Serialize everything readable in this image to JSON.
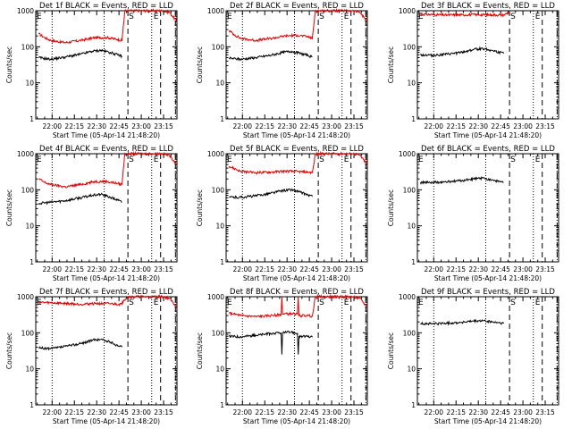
{
  "figure": {
    "ylabel": "Counts/sec",
    "xlabel": "Start Time (05-Apr-14 21:48:20)",
    "colors": {
      "events": "#000000",
      "lld": "#e00000",
      "axes": "#000000"
    },
    "markers": [
      "S",
      "E"
    ]
  },
  "chart_data": [
    {
      "title": "Det 1f BLACK = Events, RED = LLD",
      "type": "line",
      "x_ticks": [
        "22:00",
        "22:15",
        "22:30",
        "22:45",
        "23:00",
        "23:15"
      ],
      "y_ticks": [
        "1",
        "10",
        "100",
        "1000"
      ],
      "ylim": [
        1,
        1000
      ],
      "xlim_minutes": [
        0,
        95
      ],
      "dotted_lines": [
        11,
        46,
        78
      ],
      "dashed_lines": [
        62,
        84
      ],
      "dashdot_line": 94,
      "events": {
        "x_min": [
          2,
          10,
          20,
          30,
          38,
          44,
          50,
          55,
          58
        ],
        "y": [
          50,
          45,
          52,
          62,
          75,
          80,
          70,
          60,
          55
        ]
      },
      "lld": {
        "x_min": [
          2,
          6,
          10,
          20,
          30,
          40,
          48,
          55,
          58,
          59,
          60,
          85,
          90,
          95
        ],
        "y": [
          230,
          180,
          150,
          130,
          150,
          180,
          180,
          160,
          150,
          400,
          1000,
          1000,
          900,
          500
        ]
      }
    },
    {
      "title": "Det 2f BLACK = Events, RED = LLD",
      "type": "line",
      "x_ticks": [
        "22:00",
        "22:15",
        "22:30",
        "22:45",
        "23:00",
        "23:15"
      ],
      "y_ticks": [
        "1",
        "10",
        "100",
        "1000"
      ],
      "ylim": [
        1,
        1000
      ],
      "xlim_minutes": [
        0,
        95
      ],
      "dotted_lines": [
        11,
        46,
        78
      ],
      "dashed_lines": [
        62,
        84
      ],
      "dashdot_line": 94,
      "events": {
        "x_min": [
          2,
          10,
          20,
          30,
          38,
          44,
          50,
          55,
          58
        ],
        "y": [
          48,
          45,
          50,
          58,
          70,
          75,
          65,
          58,
          52
        ]
      },
      "lld": {
        "x_min": [
          2,
          6,
          10,
          20,
          30,
          40,
          48,
          55,
          58,
          59,
          60,
          85,
          90,
          95
        ],
        "y": [
          280,
          210,
          170,
          150,
          170,
          200,
          210,
          190,
          170,
          400,
          1000,
          1000,
          900,
          500
        ]
      }
    },
    {
      "title": "Det 3f BLACK = Events, RED = LLD",
      "type": "line",
      "x_ticks": [
        "22:00",
        "22:15",
        "22:30",
        "22:45",
        "23:00",
        "23:15"
      ],
      "y_ticks": [
        "1",
        "10",
        "100",
        "1000"
      ],
      "ylim": [
        1,
        1000
      ],
      "xlim_minutes": [
        0,
        95
      ],
      "dotted_lines": [
        11,
        46,
        78
      ],
      "dashed_lines": [
        62,
        84
      ],
      "dashdot_line": 94,
      "events": {
        "x_min": [
          2,
          10,
          20,
          30,
          38,
          44,
          50,
          55,
          58
        ],
        "y": [
          60,
          58,
          62,
          70,
          85,
          90,
          80,
          70,
          65
        ]
      },
      "lld": {
        "x_min": [
          2,
          10,
          20,
          30,
          40,
          50,
          58,
          59,
          62
        ],
        "y": [
          800,
          780,
          760,
          770,
          780,
          770,
          760,
          800,
          900
        ]
      }
    },
    {
      "title": "Det 4f BLACK = Events, RED = LLD",
      "type": "line",
      "x_ticks": [
        "22:00",
        "22:15",
        "22:30",
        "22:45",
        "23:00",
        "23:15"
      ],
      "y_ticks": [
        "1",
        "10",
        "100",
        "1000"
      ],
      "ylim": [
        1,
        1000
      ],
      "xlim_minutes": [
        0,
        95
      ],
      "dotted_lines": [
        11,
        46,
        78
      ],
      "dashed_lines": [
        62,
        84
      ],
      "dashdot_line": 94,
      "events": {
        "x_min": [
          2,
          10,
          20,
          30,
          38,
          44,
          50,
          55,
          58
        ],
        "y": [
          42,
          45,
          50,
          60,
          70,
          75,
          62,
          52,
          45
        ]
      },
      "lld": {
        "x_min": [
          2,
          6,
          10,
          20,
          30,
          40,
          48,
          55,
          58,
          59,
          60,
          85,
          90,
          95
        ],
        "y": [
          200,
          160,
          140,
          120,
          140,
          170,
          170,
          150,
          140,
          400,
          1000,
          1000,
          900,
          500
        ]
      }
    },
    {
      "title": "Det 5f BLACK = Events, RED = LLD",
      "type": "line",
      "x_ticks": [
        "22:00",
        "22:15",
        "22:30",
        "22:45",
        "23:00",
        "23:15"
      ],
      "y_ticks": [
        "1",
        "10",
        "100",
        "1000"
      ],
      "ylim": [
        1,
        1000
      ],
      "xlim_minutes": [
        0,
        95
      ],
      "dotted_lines": [
        11,
        46,
        78
      ],
      "dashed_lines": [
        62,
        84
      ],
      "dashdot_line": 94,
      "events": {
        "x_min": [
          2,
          10,
          20,
          30,
          38,
          44,
          50,
          55,
          58
        ],
        "y": [
          62,
          62,
          68,
          80,
          95,
          100,
          85,
          72,
          65
        ]
      },
      "lld": {
        "x_min": [
          2,
          6,
          10,
          20,
          30,
          40,
          48,
          55,
          58,
          59,
          60,
          85,
          90,
          95
        ],
        "y": [
          450,
          380,
          320,
          300,
          310,
          330,
          320,
          310,
          300,
          500,
          1000,
          1000,
          900,
          500
        ]
      }
    },
    {
      "title": "Det 6f BLACK = Events, RED = LLD",
      "type": "line",
      "x_ticks": [
        "22:00",
        "22:15",
        "22:30",
        "22:45",
        "23:00",
        "23:15"
      ],
      "y_ticks": [
        "1",
        "10",
        "100",
        "1000"
      ],
      "ylim": [
        1,
        1000
      ],
      "xlim_minutes": [
        0,
        95
      ],
      "dotted_lines": [
        11,
        46,
        78
      ],
      "dashed_lines": [
        62,
        84
      ],
      "dashdot_line": 94,
      "events": {
        "x_min": [
          2,
          10,
          20,
          30,
          38,
          44,
          50,
          55,
          58
        ],
        "y": [
          160,
          158,
          165,
          180,
          200,
          210,
          190,
          170,
          160
        ]
      },
      "lld": {
        "x_min": [],
        "y": []
      }
    },
    {
      "title": "Det 7f BLACK = Events, RED = LLD",
      "type": "line",
      "x_ticks": [
        "22:00",
        "22:15",
        "22:30",
        "22:45",
        "23:00",
        "23:15"
      ],
      "y_ticks": [
        "1",
        "10",
        "100",
        "1000"
      ],
      "ylim": [
        1,
        1000
      ],
      "xlim_minutes": [
        0,
        95
      ],
      "dotted_lines": [
        11,
        46,
        78
      ],
      "dashed_lines": [
        62,
        84
      ],
      "dashdot_line": 94,
      "events": {
        "x_min": [
          2,
          10,
          20,
          30,
          38,
          44,
          50,
          55,
          58
        ],
        "y": [
          38,
          36,
          42,
          50,
          62,
          66,
          55,
          45,
          40
        ]
      },
      "lld": {
        "x_min": [
          2,
          10,
          20,
          30,
          40,
          50,
          58,
          59,
          62,
          85,
          90,
          95
        ],
        "y": [
          700,
          680,
          650,
          620,
          650,
          640,
          620,
          800,
          1000,
          1000,
          900,
          500
        ]
      }
    },
    {
      "title": "Det 8f BLACK = Events, RED = LLD",
      "type": "line",
      "x_ticks": [
        "22:00",
        "22:15",
        "22:30",
        "22:45",
        "23:00",
        "23:15"
      ],
      "y_ticks": [
        "1",
        "10",
        "100",
        "1000"
      ],
      "ylim": [
        1,
        1000
      ],
      "xlim_minutes": [
        0,
        95
      ],
      "dotted_lines": [
        11,
        46,
        78
      ],
      "dashed_lines": [
        62,
        84
      ],
      "dashdot_line": 94,
      "events": {
        "x_min": [
          2,
          10,
          20,
          30,
          37,
          37.5,
          38,
          44,
          48,
          48.5,
          49,
          55,
          58
        ],
        "y": [
          80,
          78,
          85,
          95,
          100,
          25,
          100,
          105,
          95,
          25,
          80,
          78,
          75
        ]
      },
      "lld": {
        "x_min": [
          2,
          10,
          20,
          30,
          37,
          37.5,
          38,
          44,
          48,
          48.5,
          49,
          55,
          58,
          59,
          60,
          85,
          90,
          95
        ],
        "y": [
          350,
          300,
          280,
          300,
          320,
          1000,
          330,
          340,
          330,
          1000,
          300,
          300,
          290,
          500,
          1000,
          1000,
          900,
          500
        ]
      }
    },
    {
      "title": "Det 9f BLACK = Events, RED = LLD",
      "type": "line",
      "x_ticks": [
        "22:00",
        "22:15",
        "22:30",
        "22:45",
        "23:00",
        "23:15"
      ],
      "y_ticks": [
        "1",
        "10",
        "100",
        "1000"
      ],
      "ylim": [
        1,
        1000
      ],
      "xlim_minutes": [
        0,
        95
      ],
      "dotted_lines": [
        11,
        46,
        78
      ],
      "dashed_lines": [
        62,
        84
      ],
      "dashdot_line": 94,
      "events": {
        "x_min": [
          2,
          10,
          20,
          30,
          38,
          44,
          50,
          55,
          58
        ],
        "y": [
          180,
          178,
          185,
          195,
          210,
          215,
          200,
          190,
          180
        ]
      },
      "lld": {
        "x_min": [],
        "y": []
      }
    }
  ]
}
